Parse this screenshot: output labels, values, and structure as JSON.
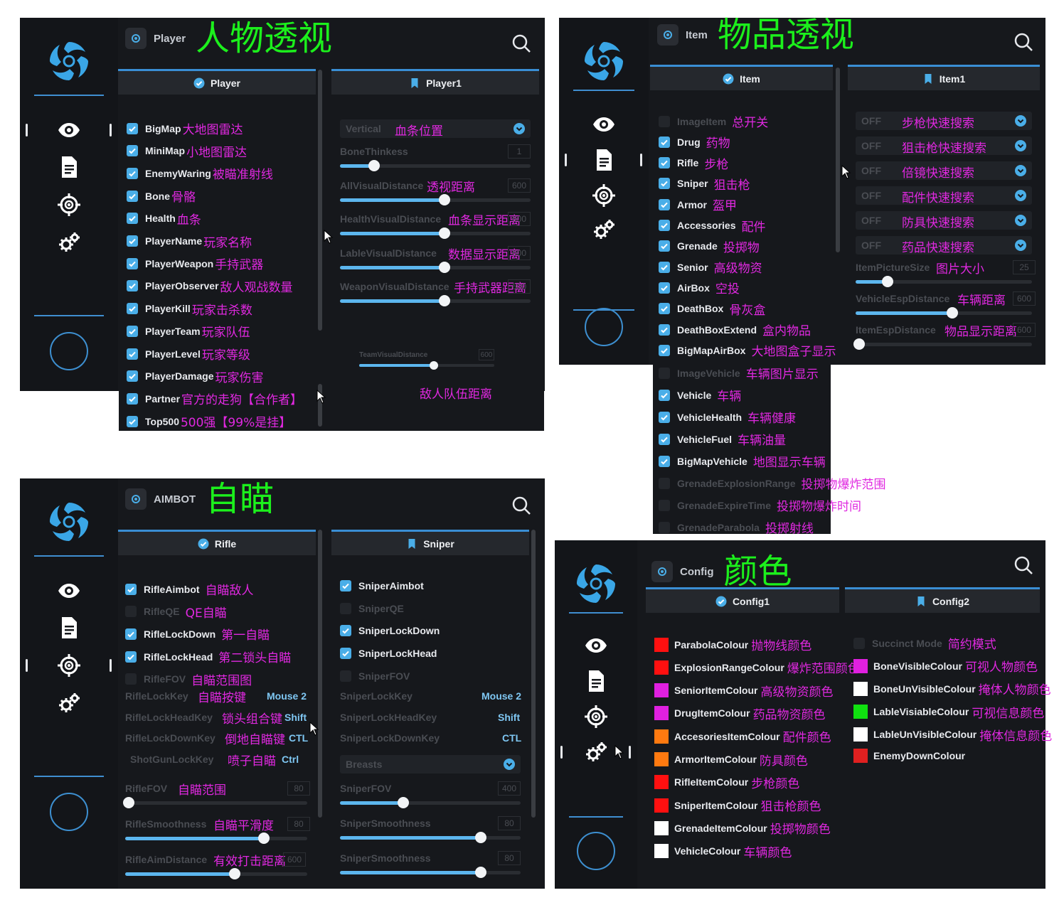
{
  "player": {
    "header": "Player",
    "title": "人物透视",
    "tab_left": "Player",
    "tab_right": "Player1",
    "items": [
      {
        "label": "BigMap",
        "cn": "大地图雷达",
        "on": true
      },
      {
        "label": "MiniMap",
        "cn": "小地图雷达",
        "on": true
      },
      {
        "label": "EnemyWaring",
        "cn": "被瞄准射线",
        "on": true
      },
      {
        "label": "Bone",
        "cn": "骨骼",
        "on": true
      },
      {
        "label": "Health",
        "cn": "血条",
        "on": true
      },
      {
        "label": "PlayerName",
        "cn": "玩家名称",
        "on": true
      },
      {
        "label": "PlayerWeapon",
        "cn": "手持武器",
        "on": true
      },
      {
        "label": "PlayerObserver",
        "cn": "敌人观战数量",
        "on": true
      },
      {
        "label": "PlayerKill",
        "cn": "玩家击杀数",
        "on": true
      },
      {
        "label": "PlayerTeam",
        "cn": "玩家队伍",
        "on": true
      },
      {
        "label": "PlayerLevel",
        "cn": "玩家等级",
        "on": true
      },
      {
        "label": "PlayerDamage",
        "cn": "玩家伤害",
        "on": true
      },
      {
        "label": "Partner",
        "cn": "官方的走狗【合作者】",
        "on": true
      },
      {
        "label": "Top500",
        "cn": "500强【99%是挂】",
        "on": true
      }
    ],
    "dropdown": {
      "value": "Vertical",
      "cn": "血条位置"
    },
    "sliders": [
      {
        "label": "BoneThinkess",
        "cn": "",
        "value": "1",
        "pct": 0.18
      },
      {
        "label": "AllVisualDistance",
        "cn": "透视距离",
        "value": "600",
        "pct": 0.55
      },
      {
        "label": "HealthVisualDistance",
        "cn": "血条显示距离",
        "value": "600",
        "pct": 0.55
      },
      {
        "label": "LableVisualDistance",
        "cn": "数据显示距离",
        "value": "600",
        "pct": 0.55
      },
      {
        "label": "WeaponVisualDistance",
        "cn": "手持武器距离",
        "value": "600",
        "pct": 0.55
      }
    ],
    "team_slider": {
      "label": "TeamVisualDistance",
      "value": "600",
      "pct": 0.55,
      "cn": "敌人队伍距离"
    }
  },
  "item": {
    "header": "Item",
    "title": "物品透视",
    "tab_left": "Item",
    "tab_right": "Item1",
    "items": [
      {
        "label": "ImageItem",
        "cn": "总开关",
        "on": false
      },
      {
        "label": "Drug",
        "cn": "药物",
        "on": true
      },
      {
        "label": "Rifle",
        "cn": "步枪",
        "on": true
      },
      {
        "label": "Sniper",
        "cn": "狙击枪",
        "on": true
      },
      {
        "label": "Armor",
        "cn": "盔甲",
        "on": true
      },
      {
        "label": "Accessories",
        "cn": "配件",
        "on": true
      },
      {
        "label": "Grenade",
        "cn": "投掷物",
        "on": true
      },
      {
        "label": "Senior",
        "cn": "高级物资",
        "on": true
      },
      {
        "label": "AirBox",
        "cn": "空投",
        "on": true
      },
      {
        "label": "DeathBox",
        "cn": "骨灰盒",
        "on": true
      },
      {
        "label": "DeathBoxExtend",
        "cn": "盒内物品",
        "on": true
      },
      {
        "label": "BigMapAirBox",
        "cn": "大地图盒子显示",
        "on": true
      },
      {
        "label": "ImageVehicle",
        "cn": "车辆图片显示",
        "on": false
      },
      {
        "label": "Vehicle",
        "cn": "车辆",
        "on": true
      },
      {
        "label": "VehicleHealth",
        "cn": "车辆健康",
        "on": true
      },
      {
        "label": "VehicleFuel",
        "cn": "车辆油量",
        "on": true
      },
      {
        "label": "BigMapVehicle",
        "cn": "地图显示车辆",
        "on": true
      },
      {
        "label": "GrenadeExplosionRange",
        "cn": "投掷物爆炸范围",
        "on": false
      },
      {
        "label": "GrenadeExpireTime",
        "cn": "投掷物爆炸时间",
        "on": false
      },
      {
        "label": "GrenadeParabola",
        "cn": "投掷射线",
        "on": false
      }
    ],
    "dropdowns": [
      {
        "value": "OFF",
        "cn": "步枪快速搜索"
      },
      {
        "value": "OFF",
        "cn": "狙击枪快速搜索"
      },
      {
        "value": "OFF",
        "cn": "倍镜快速搜索"
      },
      {
        "value": "OFF",
        "cn": "配件快速搜索"
      },
      {
        "value": "OFF",
        "cn": "防具快速搜索"
      },
      {
        "value": "OFF",
        "cn": "药品快速搜索"
      }
    ],
    "sliders": [
      {
        "label": "ItemPictureSize",
        "cn": "图片大小",
        "value": "25",
        "pct": 0.18
      },
      {
        "label": "VehicleEspDistance",
        "cn": "车辆距离",
        "value": "600",
        "pct": 0.55
      },
      {
        "label": "ItemEspDistance",
        "cn": "物品显示距离",
        "value": "600",
        "pct": 0.02
      }
    ]
  },
  "aimbot": {
    "header": "AIMBOT",
    "title": "自瞄",
    "tab_left": "Rifle",
    "tab_right": "Sniper",
    "rifle_items": [
      {
        "label": "RifleAimbot",
        "cn": "自瞄敌人",
        "on": true
      },
      {
        "label": "RifleQE",
        "cn": "QE自瞄",
        "on": false
      },
      {
        "label": "RifleLockDown",
        "cn": "第一自瞄",
        "on": true
      },
      {
        "label": "RifleLockHead",
        "cn": "第二锁头自瞄",
        "on": true
      },
      {
        "label": "RifleFOV",
        "cn": "自瞄范围图",
        "on": false
      }
    ],
    "rifle_keys": [
      {
        "label": "RifleLockKey",
        "cn": "自瞄按键",
        "key": "Mouse 2"
      },
      {
        "label": "RifleLockHeadKey",
        "cn": "锁头组合键",
        "key": "Shift"
      },
      {
        "label": "RifleLockDownKey",
        "cn": "倒地自瞄键",
        "key": "CTL"
      },
      {
        "label": "ShotGunLockKey",
        "cn": "喷子自瞄",
        "key": "Ctrl"
      }
    ],
    "rifle_sliders": [
      {
        "label": "RifleFOV",
        "cn": "自瞄范围",
        "value": "80",
        "pct": 0.02
      },
      {
        "label": "RifleSmoothness",
        "cn": "自瞄平滑度",
        "value": "80",
        "pct": 0.76
      },
      {
        "label": "RifleAimDistance",
        "cn": "有效打击距离",
        "value": "600",
        "pct": 0.6
      }
    ],
    "sniper_items": [
      {
        "label": "SniperAimbot",
        "on": true
      },
      {
        "label": "SniperQE",
        "on": false
      },
      {
        "label": "SniperLockDown",
        "on": true
      },
      {
        "label": "SniperLockHead",
        "on": true
      },
      {
        "label": "SniperFOV",
        "on": false
      }
    ],
    "sniper_keys": [
      {
        "label": "SniperLockKey",
        "key": "Mouse 2"
      },
      {
        "label": "SniperLockHeadKey",
        "key": "Shift"
      },
      {
        "label": "SniperLockDownKey",
        "key": "CTL"
      }
    ],
    "sniper_dropdown": "Breasts",
    "sniper_sliders": [
      {
        "label": "SniperFOV",
        "value": "400",
        "pct": 0.35
      },
      {
        "label": "SniperSmoothness",
        "value": "80",
        "pct": 0.78
      },
      {
        "label": "SniperSmoothness",
        "value": "80",
        "pct": 0.78
      }
    ]
  },
  "config": {
    "header": "Config",
    "title": "颜色",
    "tab_left": "Config1",
    "tab_right": "Config2",
    "left_colours": [
      {
        "label": "ParabolaColour",
        "cn": "抛物线颜色",
        "color": "#ff1010"
      },
      {
        "label": "ExplosionRangeColour",
        "cn": "爆炸范围颜色",
        "color": "#ff1010"
      },
      {
        "label": "SeniorItemColour",
        "cn": "高级物资颜色",
        "color": "#e020e0"
      },
      {
        "label": "DrugItemColour",
        "cn": "药品物资颜色",
        "color": "#e020e0"
      },
      {
        "label": "AccesoriesItemColour",
        "cn": "配件颜色",
        "color": "#ff7a10"
      },
      {
        "label": "ArmorItemColour",
        "cn": "防具颜色",
        "color": "#ff7a10"
      },
      {
        "label": "RifleItemColour",
        "cn": "步枪颜色",
        "color": "#ff1010"
      },
      {
        "label": "SniperItemColour",
        "cn": "狙击枪颜色",
        "color": "#ff1010"
      },
      {
        "label": "GrenadeItemColour",
        "cn": "投掷物颜色",
        "color": "#ffffff"
      },
      {
        "label": "VehicleColour",
        "cn": "车辆颜色",
        "color": "#ffffff"
      }
    ],
    "succinct": {
      "label": "Succinct Mode",
      "cn": "简约模式"
    },
    "right_colours": [
      {
        "label": "BoneVisibleColour",
        "cn": "可视人物颜色",
        "color": "#e020e0"
      },
      {
        "label": "BoneUnVisibleColour",
        "cn": "掩体人物颜色",
        "color": "#ffffff"
      },
      {
        "label": "LableVisiableColour",
        "cn": "可视信息颜色",
        "color": "#10e010"
      },
      {
        "label": "LableUnVisibleColour",
        "cn": "掩体信息颜色",
        "color": "#ffffff"
      },
      {
        "label": "EnemyDownColour",
        "cn": "",
        "color": "#e02020"
      }
    ]
  }
}
